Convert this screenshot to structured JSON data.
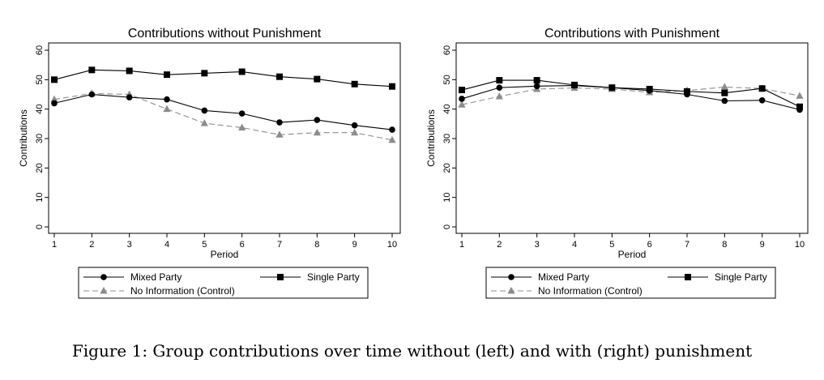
{
  "caption": "Figure 1: Group contributions over time without (left) and with (right) punishment",
  "chart_data": [
    {
      "type": "line",
      "title": "Contributions without Punishment",
      "xlabel": "Period",
      "ylabel": "Contributions",
      "x": [
        1,
        2,
        3,
        4,
        5,
        6,
        7,
        8,
        9,
        10
      ],
      "xticks": [
        "1",
        "2",
        "3",
        "4",
        "5",
        "6",
        "7",
        "8",
        "9",
        "10"
      ],
      "yticks": [
        "0",
        "10",
        "20",
        "30",
        "40",
        "50",
        "60"
      ],
      "xlim": [
        1,
        10
      ],
      "ylim": [
        0,
        60
      ],
      "grid": false,
      "legend_position": "bottom",
      "series": [
        {
          "name": "Mixed Party",
          "marker": "circle",
          "color": "#000000",
          "dash": "solid",
          "values": [
            42.0,
            45.0,
            44.0,
            43.3,
            39.5,
            38.5,
            35.5,
            36.3,
            34.5,
            33.0
          ]
        },
        {
          "name": "Single Party",
          "marker": "square",
          "color": "#000000",
          "dash": "solid",
          "values": [
            50.0,
            53.3,
            53.0,
            51.7,
            52.2,
            52.7,
            51.0,
            50.2,
            48.5,
            47.7
          ]
        },
        {
          "name": "No Information (Control)",
          "marker": "triangle",
          "color": "#8c8c8c",
          "dash": "dashed",
          "values": [
            43.3,
            45.3,
            45.0,
            40.0,
            35.2,
            33.7,
            31.3,
            32.0,
            32.0,
            29.5
          ]
        }
      ]
    },
    {
      "type": "line",
      "title": "Contributions with Punishment",
      "xlabel": "Period",
      "ylabel": "Contributions",
      "x": [
        1,
        2,
        3,
        4,
        5,
        6,
        7,
        8,
        9,
        10
      ],
      "xticks": [
        "1",
        "2",
        "3",
        "4",
        "5",
        "6",
        "7",
        "8",
        "9",
        "10"
      ],
      "yticks": [
        "0",
        "10",
        "20",
        "30",
        "40",
        "50",
        "60"
      ],
      "xlim": [
        1,
        10
      ],
      "ylim": [
        0,
        60
      ],
      "grid": false,
      "legend_position": "bottom",
      "series": [
        {
          "name": "Mixed Party",
          "marker": "circle",
          "color": "#000000",
          "dash": "solid",
          "values": [
            43.5,
            47.3,
            47.8,
            48.0,
            47.3,
            46.3,
            45.0,
            42.8,
            43.0,
            39.8
          ]
        },
        {
          "name": "Single Party",
          "marker": "square",
          "color": "#000000",
          "dash": "solid",
          "values": [
            46.5,
            49.8,
            49.8,
            48.2,
            47.3,
            46.8,
            46.0,
            45.5,
            47.0,
            40.8
          ]
        },
        {
          "name": "No Information (Control)",
          "marker": "triangle",
          "color": "#8c8c8c",
          "dash": "dashed",
          "values": [
            41.5,
            44.3,
            46.8,
            47.2,
            46.8,
            45.7,
            46.3,
            47.5,
            47.0,
            44.5
          ]
        }
      ]
    }
  ]
}
